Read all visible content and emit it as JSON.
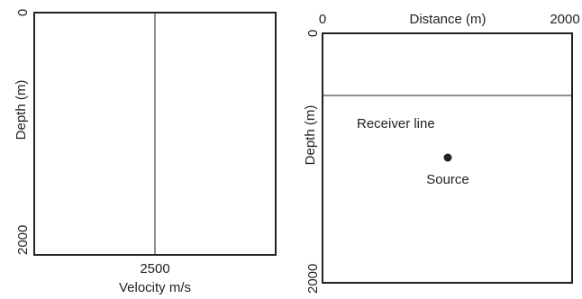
{
  "velocity_panel": {
    "y_axis_label": "Depth (m)",
    "y_tick_top": "0",
    "y_tick_bottom": "2000",
    "x_axis_label": "Velocity m/s",
    "x_tick": "2500"
  },
  "model_panel": {
    "x_axis_label": "Distance (m)",
    "x_tick_left": "0",
    "x_tick_right": "2000",
    "y_axis_label": "Depth (m)",
    "y_tick_top": "0",
    "y_tick_bottom": "2000",
    "receiver_label": "Receiver line",
    "source_label": "Source"
  },
  "colors": {
    "line": "#222222",
    "background": "#ffffff"
  }
}
